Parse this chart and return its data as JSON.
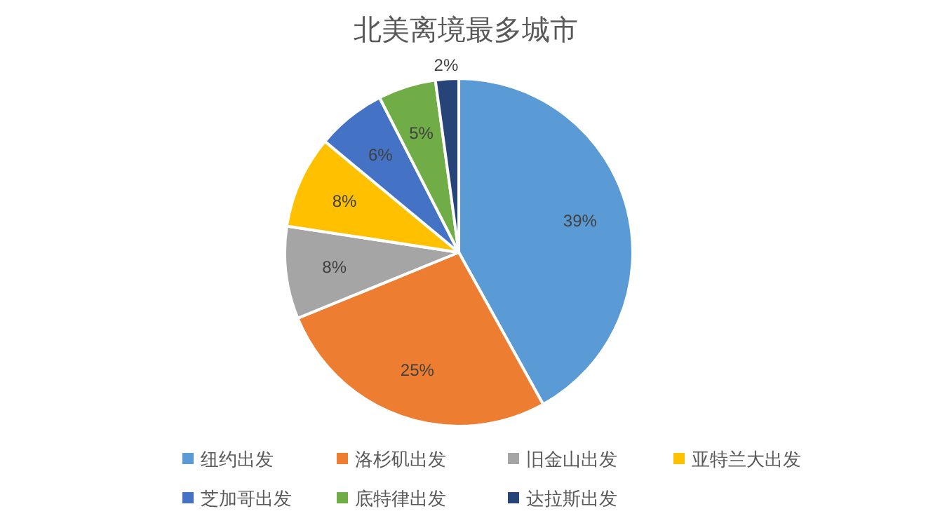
{
  "chart_data": {
    "type": "pie",
    "title": "北美离境最多城市",
    "categories": [
      "纽约出发",
      "洛杉矶出发",
      "旧金山出发",
      "亚特兰大出发",
      "芝加哥出发",
      "底特律出发",
      "达拉斯出发"
    ],
    "values": [
      39,
      25,
      8,
      8,
      6,
      5,
      2
    ],
    "colors": [
      "#5b9bd5",
      "#ed7d31",
      "#a5a5a5",
      "#ffc000",
      "#4472c4",
      "#70ad47",
      "#264478"
    ],
    "value_labels": [
      "39%",
      "25%",
      "8%",
      "8%",
      "6%",
      "5%",
      "2%"
    ],
    "legend": "bottom"
  }
}
